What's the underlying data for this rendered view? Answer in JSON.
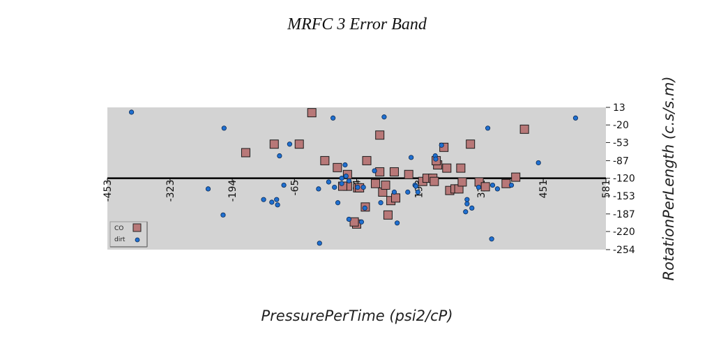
{
  "chart_data": {
    "type": "scatter",
    "title": "MRFC 3 Error Band",
    "xlabel": "PressurePerTime (psi2/cP)",
    "ylabel": "RotationPerLength (c.s/s.m)",
    "xlim": [
      -453,
      581
    ],
    "ylim": [
      -254,
      13
    ],
    "x_ticks": [
      "-453",
      "-323",
      "-194",
      "-65",
      "64",
      "193",
      "322",
      "451",
      "581"
    ],
    "x_tick_values": [
      -453,
      -323,
      -194,
      -65,
      64,
      193,
      322,
      451,
      581
    ],
    "y_ticks": [
      "13",
      "-20",
      "-53",
      "-87",
      "-120",
      "-153",
      "-187",
      "-220",
      "-254"
    ],
    "y_tick_values": [
      13,
      -20,
      -53,
      -87,
      -120,
      -153,
      -187,
      -220,
      -254
    ],
    "zero_line_y": -120,
    "legend_placement": "bottom-left",
    "background": "#d3d3d3",
    "series": [
      {
        "name": "CO",
        "marker": "square",
        "color": "#b87878",
        "points": [
          [
            -166,
            -72
          ],
          [
            -107,
            -56
          ],
          [
            -55,
            -56
          ],
          [
            -29,
            3
          ],
          [
            -2,
            -87
          ],
          [
            24,
            -100
          ],
          [
            45,
            -113
          ],
          [
            45,
            -135
          ],
          [
            35,
            -135
          ],
          [
            66,
            -138
          ],
          [
            70,
            -138
          ],
          [
            64,
            -206
          ],
          [
            59,
            -202
          ],
          [
            82,
            -174
          ],
          [
            85,
            -87
          ],
          [
            103,
            -130
          ],
          [
            112,
            -39
          ],
          [
            112,
            -108
          ],
          [
            118,
            -146
          ],
          [
            124,
            -133
          ],
          [
            129,
            -189
          ],
          [
            135,
            -162
          ],
          [
            145,
            -157
          ],
          [
            142,
            -108
          ],
          [
            172,
            -113
          ],
          [
            201,
            -126
          ],
          [
            210,
            -120
          ],
          [
            222,
            -120
          ],
          [
            232,
            -95
          ],
          [
            225,
            -126
          ],
          [
            229,
            -87
          ],
          [
            245,
            -62
          ],
          [
            257,
            -143
          ],
          [
            251,
            -101
          ],
          [
            268,
            -140
          ],
          [
            276,
            -140
          ],
          [
            283,
            -127
          ],
          [
            280,
            -101
          ],
          [
            300,
            -56
          ],
          [
            318,
            -127
          ],
          [
            331,
            -136
          ],
          [
            374,
            -130
          ],
          [
            394,
            -118
          ],
          [
            412,
            -28
          ]
        ]
      },
      {
        "name": "dirt",
        "marker": "circle",
        "color": "#1f6fd0",
        "points": [
          [
            -403,
            4
          ],
          [
            -244,
            -140
          ],
          [
            -211,
            -26
          ],
          [
            -213,
            -189
          ],
          [
            -129,
            -160
          ],
          [
            -112,
            -165
          ],
          [
            -102,
            -160
          ],
          [
            -100,
            -170
          ],
          [
            -96,
            -78
          ],
          [
            -87,
            -133
          ],
          [
            -75,
            -56
          ],
          [
            -13,
            -242
          ],
          [
            -15,
            -140
          ],
          [
            6,
            -127
          ],
          [
            15,
            -7
          ],
          [
            18,
            -137
          ],
          [
            25,
            -166
          ],
          [
            33,
            -130
          ],
          [
            33,
            -120
          ],
          [
            40,
            -95
          ],
          [
            42,
            -116
          ],
          [
            48,
            -125
          ],
          [
            48,
            -197
          ],
          [
            66,
            -137
          ],
          [
            74,
            -202
          ],
          [
            78,
            -137
          ],
          [
            81,
            -176
          ],
          [
            101,
            -106
          ],
          [
            114,
            -166
          ],
          [
            121,
            -5
          ],
          [
            142,
            -146
          ],
          [
            148,
            -204
          ],
          [
            170,
            -146
          ],
          [
            177,
            -81
          ],
          [
            185,
            -133
          ],
          [
            187,
            -135
          ],
          [
            191,
            -146
          ],
          [
            227,
            -78
          ],
          [
            228,
            -84
          ],
          [
            240,
            -58
          ],
          [
            290,
            -183
          ],
          [
            293,
            -168
          ],
          [
            293,
            -160
          ],
          [
            303,
            -176
          ],
          [
            317,
            -137
          ],
          [
            336,
            -26
          ],
          [
            344,
            -234
          ],
          [
            346,
            -133
          ],
          [
            356,
            -140
          ],
          [
            385,
            -133
          ],
          [
            441,
            -91
          ],
          [
            518,
            -7
          ]
        ]
      }
    ]
  }
}
